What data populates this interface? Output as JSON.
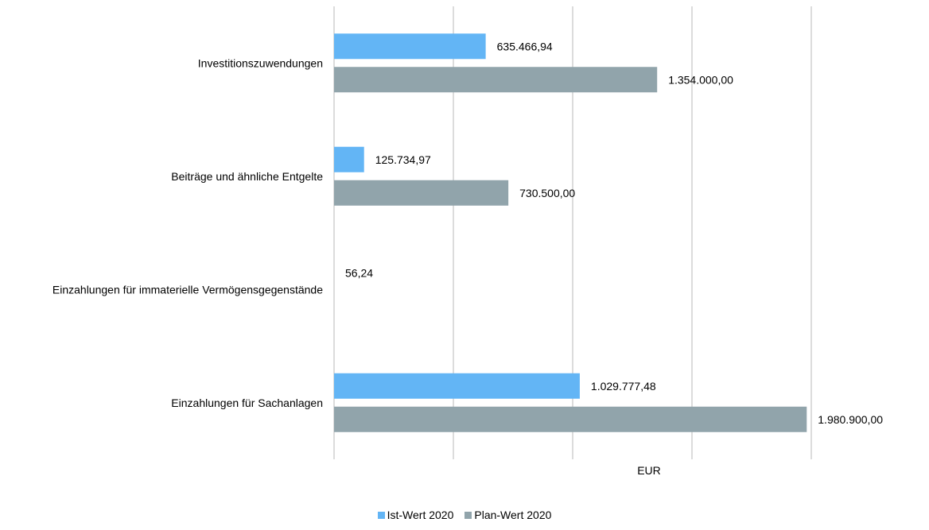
{
  "chart_data": {
    "type": "bar",
    "orientation": "horizontal",
    "title": "",
    "xlabel": "EUR",
    "ylabel": "",
    "xlim": [
      0,
      2000000
    ],
    "grid": true,
    "legend_position": "bottom",
    "categories": [
      "Investitionszuwendungen",
      "Beiträge und ähnliche Entgelte",
      "Einzahlungen für immaterielle Vermögensgegenstände",
      "Einzahlungen für Sachanlagen"
    ],
    "series": [
      {
        "name": "Ist-Wert 2020",
        "color": "#63b5f5",
        "values": [
          635466.94,
          125734.97,
          56.24,
          1029777.48
        ],
        "labels": [
          "635.466,94",
          "125.734,97",
          "56,24",
          "1.029.777,48"
        ]
      },
      {
        "name": "Plan-Wert 2020",
        "color": "#91a4ab",
        "values": [
          1354000.0,
          730500.0,
          null,
          1980900.0
        ],
        "labels": [
          "1.354.000,00",
          "730.500,00",
          "",
          "1.980.900,00"
        ]
      }
    ]
  }
}
